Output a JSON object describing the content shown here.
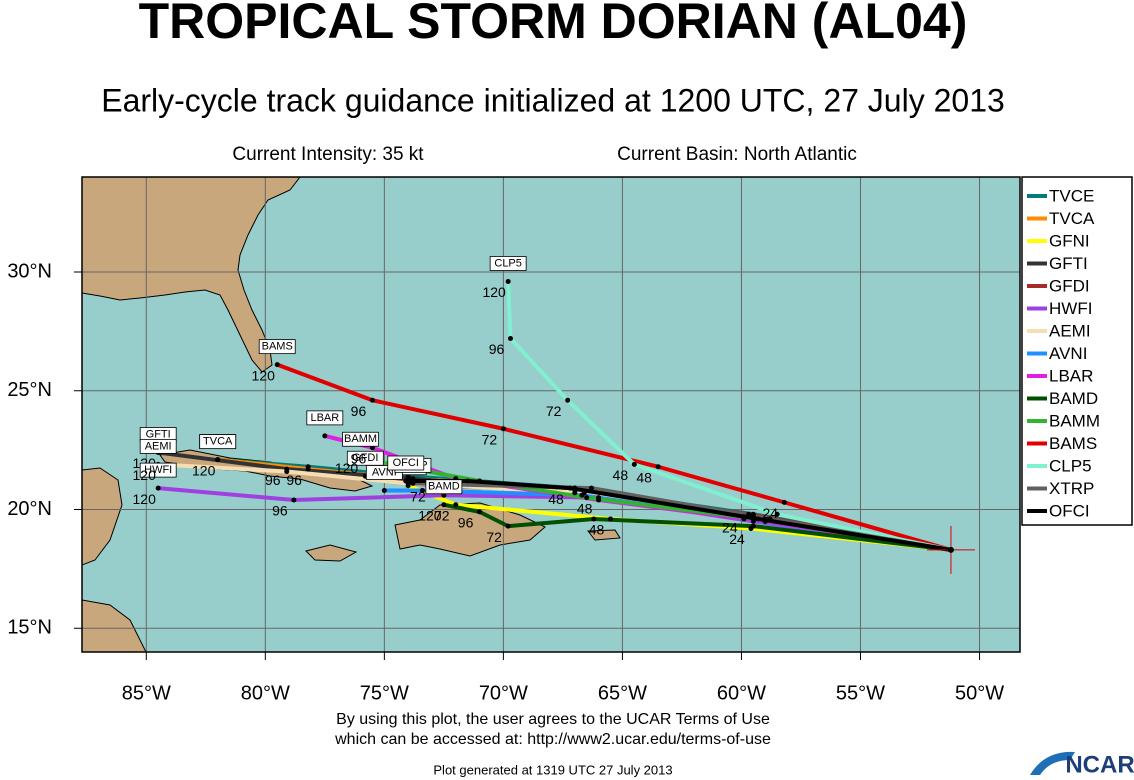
{
  "chart_data": {
    "type": "track",
    "title": "TROPICAL STORM DORIAN (AL04)",
    "subtitle": "Early-cycle track guidance initialized at 1200 UTC, 27 July 2013",
    "intensity": "Current Intensity: 35 kt",
    "basin": "Current Basin: North Atlantic",
    "notes": [
      "By using this plot, the user agrees to the UCAR Terms of Use",
      "which can be accessed at: http://www2.ucar.edu/terms-of-use"
    ],
    "generated": "Plot generated at 1319 UTC   27 July 2013",
    "logo": "NCAR",
    "xlim": [
      -87.7,
      -48.3
    ],
    "ylim": [
      14,
      34
    ],
    "xticks": [
      {
        "value": -85,
        "label": "85°W"
      },
      {
        "value": -80,
        "label": "80°W"
      },
      {
        "value": -75,
        "label": "75°W"
      },
      {
        "value": -70,
        "label": "70°W"
      },
      {
        "value": -65,
        "label": "65°W"
      },
      {
        "value": -60,
        "label": "60°W"
      },
      {
        "value": -55,
        "label": "55°W"
      },
      {
        "value": -50,
        "label": "50°W"
      }
    ],
    "yticks": [
      {
        "value": 15,
        "label": "15°N"
      },
      {
        "value": 20,
        "label": "20°N"
      },
      {
        "value": 25,
        "label": "25°N"
      },
      {
        "value": 30,
        "label": "30°N"
      }
    ],
    "grid": true,
    "legend": "right",
    "series": [
      {
        "name": "TVCE",
        "color": "#007a7a",
        "x": [
          -51.2,
          -59.5,
          -67.0,
          -74.0,
          -78.2,
          -82.0
        ],
        "values": [
          18.3,
          19.8,
          20.9,
          21.4,
          21.8,
          22.1
        ],
        "hours": [
          null,
          null,
          null,
          null,
          null,
          null
        ]
      },
      {
        "name": "TVCA",
        "color": "#ff8c00",
        "x": [
          -51.2,
          -59.5,
          -67.0,
          -74.0,
          -78.2,
          -82.0
        ],
        "values": [
          18.3,
          19.7,
          20.9,
          21.3,
          21.7,
          22.1
        ],
        "hours": [
          null,
          null,
          null,
          null,
          96,
          120
        ]
      },
      {
        "name": "GFNI",
        "color": "#ffff00",
        "x": [
          -51.2,
          -59.6,
          -65.5,
          -72.0,
          -74.0
        ],
        "values": [
          18.3,
          19.2,
          19.6,
          20.2,
          21.0
        ],
        "hours": [
          null,
          24,
          48,
          72,
          null
        ]
      },
      {
        "name": "GFTI",
        "color": "#333333",
        "x": [
          -51.2,
          -59.6,
          -67.0,
          -73.8,
          -79.1,
          -84.5
        ],
        "values": [
          18.3,
          19.7,
          20.7,
          21.3,
          21.7,
          22.4
        ],
        "hours": [
          null,
          null,
          null,
          null,
          96,
          120
        ]
      },
      {
        "name": "GFDI",
        "color": "#a52a2a",
        "x": [
          -51.2,
          -59.7,
          -67.0,
          -73.0,
          -75.8
        ],
        "values": [
          18.3,
          19.8,
          20.8,
          21.0,
          21.4
        ],
        "hours": [
          null,
          null,
          null,
          72,
          null
        ]
      },
      {
        "name": "HWFI",
        "color": "#a040e0",
        "x": [
          -51.2,
          -59.5,
          -66.0,
          -72.5,
          -78.8,
          -84.5
        ],
        "values": [
          18.3,
          19.5,
          20.5,
          20.6,
          20.4,
          20.9
        ],
        "hours": [
          null,
          null,
          48,
          null,
          96,
          120
        ]
      },
      {
        "name": "AEMI",
        "color": "#f5deb3",
        "x": [
          -51.2,
          -59.0,
          -66.6,
          -74.0,
          -79.1,
          -84.5
        ],
        "values": [
          18.3,
          19.5,
          20.7,
          21.1,
          21.6,
          21.9
        ],
        "hours": [
          null,
          null,
          null,
          null,
          null,
          120
        ]
      },
      {
        "name": "AVNI",
        "color": "#1e90ff",
        "x": [
          -51.2,
          -59.9,
          -66.7,
          -73.4,
          -75.0
        ],
        "values": [
          18.3,
          19.6,
          20.6,
          20.8,
          20.8
        ],
        "hours": [
          null,
          null,
          null,
          null,
          null
        ]
      },
      {
        "name": "LBAR",
        "color": "#e020e0",
        "x": [
          -51.2,
          -59.0,
          -66.0,
          -72.0,
          -75.5,
          -77.5
        ],
        "values": [
          18.3,
          19.5,
          20.4,
          21.3,
          22.6,
          23.1
        ],
        "hours": [
          null,
          null,
          null,
          null,
          96,
          null
        ]
      },
      {
        "name": "BAMD",
        "color": "#005000",
        "x": [
          -51.2,
          -59.5,
          -66.2,
          -69.8,
          -71.0,
          -72.5
        ],
        "values": [
          18.3,
          19.3,
          19.6,
          19.3,
          19.9,
          20.2
        ],
        "hours": [
          null,
          null,
          null,
          72,
          96,
          120
        ]
      },
      {
        "name": "BAMM",
        "color": "#32b432",
        "x": [
          -51.2,
          -59.3,
          -66.5,
          -71.0,
          -74.3,
          -76.0
        ],
        "values": [
          18.3,
          19.6,
          20.5,
          21.2,
          21.8,
          22.2
        ],
        "hours": [
          null,
          null,
          null,
          null,
          null,
          120
        ]
      },
      {
        "name": "BAMS",
        "color": "#e00000",
        "x": [
          -51.2,
          -58.2,
          -63.5,
          -70.0,
          -75.5,
          -79.5
        ],
        "values": [
          18.3,
          20.3,
          21.8,
          23.4,
          24.6,
          26.1
        ],
        "hours": [
          null,
          24,
          48,
          72,
          96,
          120
        ]
      },
      {
        "name": "CLP5",
        "color": "#80f0d0",
        "x": [
          -51.2,
          -58.5,
          -64.5,
          -67.3,
          -69.7,
          -69.8
        ],
        "values": [
          18.3,
          19.8,
          21.9,
          24.6,
          27.2,
          29.6
        ],
        "hours": [
          null,
          null,
          48,
          72,
          96,
          120
        ]
      },
      {
        "name": "XTRP",
        "color": "#606060",
        "x": [
          -51.2,
          -58.8,
          -66.3,
          -73.8
        ],
        "values": [
          18.3,
          19.6,
          20.9,
          21.1
        ],
        "hours": [
          null,
          null,
          null,
          null
        ]
      },
      {
        "name": "OFCI",
        "color": "#000000",
        "x": [
          -51.2,
          -59.9,
          -67.2,
          -71.5,
          -74.1
        ],
        "values": [
          18.3,
          19.7,
          20.9,
          21.2,
          21.2
        ],
        "hours": [
          null,
          24,
          48,
          null,
          null
        ]
      }
    ]
  }
}
